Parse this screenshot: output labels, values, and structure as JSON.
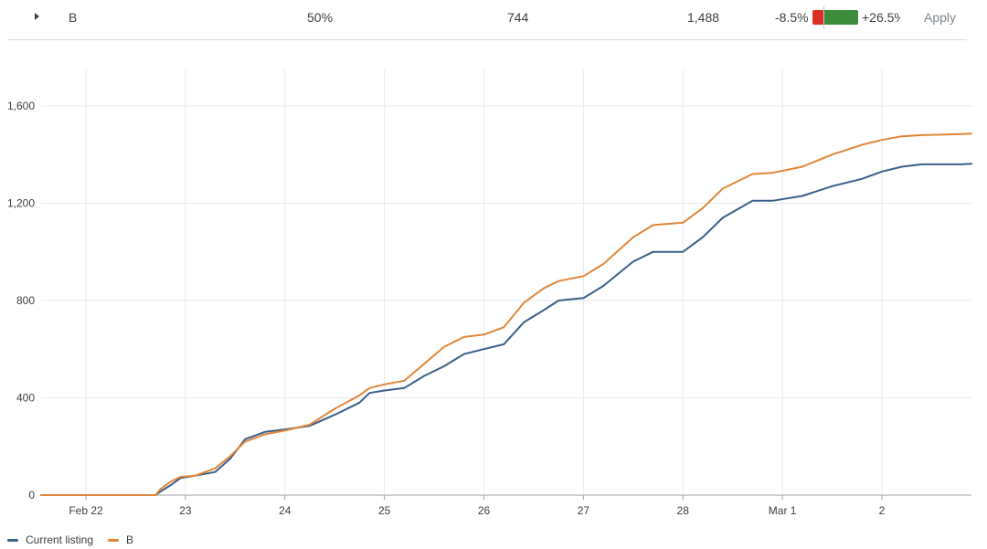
{
  "row": {
    "name": "B",
    "audience_share": "50%",
    "installs_current": "744",
    "installs_scaled": "1,488",
    "ci_low": "-8.5%",
    "ci_high": "+26.5%",
    "apply_label": "Apply",
    "ci_low_color": "#d93025",
    "ci_high_color": "#3c8c3c"
  },
  "chart_data": {
    "type": "line",
    "title": "",
    "xlabel": "",
    "ylabel": "",
    "x_range": [
      -0.45,
      8.9
    ],
    "ylim": [
      0,
      1750
    ],
    "y_ticks": [
      0,
      400,
      800,
      1200,
      1600
    ],
    "y_tick_labels": [
      "0",
      "400",
      "800",
      "1,200",
      "1,600"
    ],
    "x_ticks": [
      0,
      1,
      2,
      3,
      4,
      5,
      6,
      7,
      8
    ],
    "x_tick_labels": [
      "Feb 22",
      "23",
      "24",
      "25",
      "26",
      "27",
      "28",
      "Mar 1",
      "2"
    ],
    "grid": true,
    "legend_position": "bottom-left",
    "series": [
      {
        "name": "Current listing",
        "color": "#3a5f8a",
        "x": [
          -0.45,
          0.7,
          0.75,
          0.85,
          0.95,
          1.1,
          1.3,
          1.45,
          1.6,
          1.8,
          2.0,
          2.25,
          2.5,
          2.75,
          2.85,
          3.0,
          3.2,
          3.4,
          3.6,
          3.8,
          4.0,
          4.2,
          4.4,
          4.6,
          4.75,
          5.0,
          5.2,
          5.5,
          5.7,
          6.0,
          6.2,
          6.4,
          6.7,
          6.9,
          7.2,
          7.5,
          7.8,
          8.0,
          8.2,
          8.4,
          8.6,
          8.8,
          8.9
        ],
        "y": [
          0,
          0,
          15,
          40,
          70,
          80,
          95,
          150,
          230,
          260,
          270,
          285,
          330,
          380,
          420,
          430,
          440,
          490,
          530,
          580,
          600,
          620,
          710,
          760,
          800,
          810,
          860,
          960,
          1000,
          1000,
          1060,
          1140,
          1210,
          1210,
          1230,
          1270,
          1300,
          1330,
          1350,
          1360,
          1360,
          1360,
          1362
        ]
      },
      {
        "name": "B",
        "color": "#e0863a",
        "x": [
          -0.45,
          0.7,
          0.75,
          0.85,
          0.95,
          1.1,
          1.3,
          1.45,
          1.6,
          1.8,
          2.0,
          2.25,
          2.5,
          2.75,
          2.85,
          3.0,
          3.2,
          3.4,
          3.6,
          3.8,
          4.0,
          4.2,
          4.4,
          4.6,
          4.75,
          5.0,
          5.2,
          5.5,
          5.7,
          6.0,
          6.2,
          6.4,
          6.7,
          6.9,
          7.2,
          7.5,
          7.8,
          8.0,
          8.2,
          8.4,
          8.6,
          8.8,
          8.9
        ],
        "y": [
          0,
          0,
          25,
          55,
          75,
          80,
          110,
          160,
          220,
          250,
          265,
          290,
          355,
          410,
          440,
          455,
          470,
          540,
          610,
          650,
          660,
          690,
          790,
          850,
          880,
          900,
          950,
          1060,
          1110,
          1120,
          1180,
          1260,
          1320,
          1325,
          1350,
          1400,
          1440,
          1460,
          1475,
          1480,
          1482,
          1484,
          1486
        ]
      }
    ]
  }
}
